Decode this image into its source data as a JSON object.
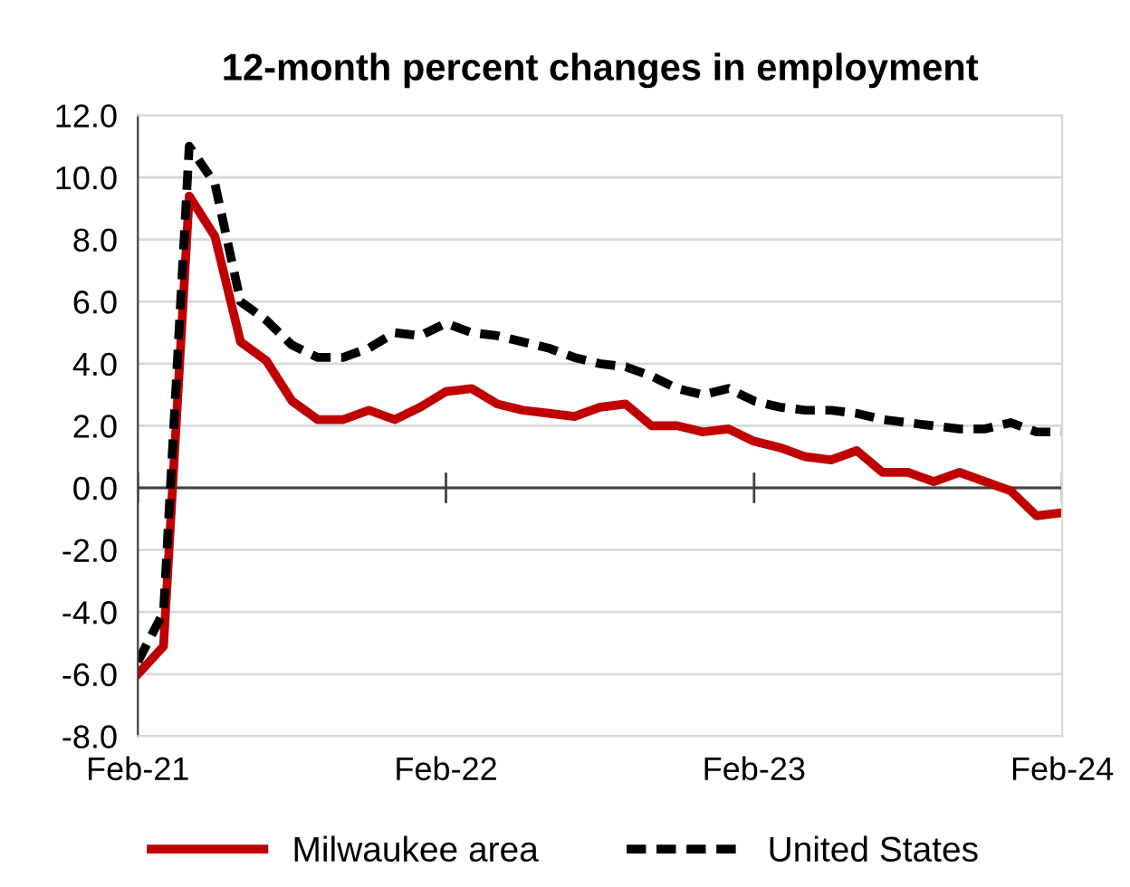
{
  "chart_data": {
    "type": "line",
    "title": "12-month percent changes in employment",
    "categories": [
      "Feb-21",
      null,
      null,
      null,
      null,
      null,
      null,
      null,
      null,
      null,
      null,
      null,
      "Feb-22",
      null,
      null,
      null,
      null,
      null,
      null,
      null,
      null,
      null,
      null,
      null,
      "Feb-23",
      null,
      null,
      null,
      null,
      null,
      null,
      null,
      null,
      null,
      null,
      null,
      "Feb-24"
    ],
    "series": [
      {
        "name": "Milwaukee area",
        "color": "#c00000",
        "line_style": "solid",
        "values": [
          -6.0,
          -5.1,
          9.4,
          8.1,
          4.7,
          4.1,
          2.8,
          2.2,
          2.2,
          2.5,
          2.2,
          2.6,
          3.1,
          3.2,
          2.7,
          2.5,
          2.4,
          2.3,
          2.6,
          2.7,
          2.0,
          2.0,
          1.8,
          1.9,
          1.5,
          1.3,
          1.0,
          0.9,
          1.2,
          0.5,
          0.5,
          0.2,
          0.5,
          0.2,
          -0.1,
          -0.9,
          -0.8
        ]
      },
      {
        "name": "United States",
        "color": "#000000",
        "line_style": "dashed",
        "values": [
          -5.6,
          -4.0,
          11.0,
          9.8,
          6.0,
          5.4,
          4.6,
          4.2,
          4.2,
          4.5,
          5.0,
          4.9,
          5.3,
          5.0,
          4.9,
          4.7,
          4.5,
          4.2,
          4.0,
          3.9,
          3.6,
          3.2,
          3.0,
          3.2,
          2.8,
          2.6,
          2.5,
          2.5,
          2.4,
          2.2,
          2.1,
          2.0,
          1.9,
          1.9,
          2.1,
          1.8,
          1.8
        ]
      }
    ],
    "ylim": [
      -8,
      12
    ],
    "yticks": [
      {
        "value": -8,
        "label": "-8.0"
      },
      {
        "value": -6,
        "label": "-6.0"
      },
      {
        "value": -4,
        "label": "-4.0"
      },
      {
        "value": -2,
        "label": "-2.0"
      },
      {
        "value": 0,
        "label": "0.0"
      },
      {
        "value": 2,
        "label": "2.0"
      },
      {
        "value": 4,
        "label": "4.0"
      },
      {
        "value": 6,
        "label": "6.0"
      },
      {
        "value": 8,
        "label": "8.0"
      },
      {
        "value": 10,
        "label": "10.0"
      },
      {
        "value": 12,
        "label": "12.0"
      }
    ],
    "grid": "y",
    "legend": "bottom",
    "marker": "none"
  }
}
